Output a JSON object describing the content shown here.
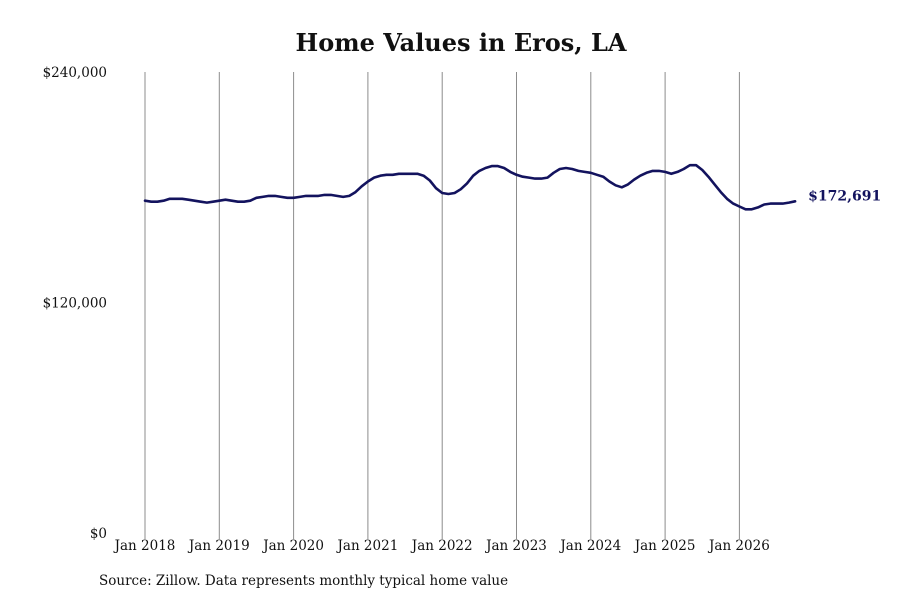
{
  "colors": {
    "line": "#13135e",
    "grid": "#8c8c8c",
    "text": "#111111"
  },
  "chart_data": {
    "type": "line",
    "title": "Home Values in Eros, LA",
    "source": "Source: Zillow. Data represents monthly typical home value",
    "ylim": [
      0,
      240000
    ],
    "ytick_labels": [
      "$0",
      "$120,000",
      "$240,000"
    ],
    "ytick_values": [
      0,
      120000,
      240000
    ],
    "xtick_labels": [
      "Jan 2018",
      "Jan 2019",
      "Jan 2020",
      "Jan 2021",
      "Jan 2022",
      "Jan 2023",
      "Jan 2024",
      "Jan 2025",
      "Jan 2026"
    ],
    "x_start": "Jan 2018",
    "x_end": "Jul 2026",
    "grid": "vertical",
    "last_value_label": "$172,691",
    "series": [
      {
        "values": [
          173000,
          172500,
          172500,
          173000,
          174000,
          174000,
          174000,
          173500,
          173000,
          172500,
          172000,
          172500,
          173000,
          173500,
          173000,
          172500,
          172500,
          173000,
          174500,
          175000,
          175500,
          175500,
          175000,
          174500,
          174500,
          175000,
          175500,
          175500,
          175500,
          176000,
          176000,
          175500,
          175000,
          175500,
          177500,
          180500,
          183000,
          185000,
          186000,
          186500,
          186500,
          187000,
          187000,
          187000,
          187000,
          186000,
          183500,
          179500,
          177000,
          176500,
          177000,
          179000,
          182000,
          186000,
          188500,
          190000,
          191000,
          191000,
          190000,
          188000,
          186500,
          185500,
          185000,
          184500,
          184500,
          185000,
          187500,
          189500,
          190000,
          189500,
          188500,
          188000,
          187500,
          186500,
          185500,
          183000,
          181000,
          180000,
          181500,
          184000,
          186000,
          187500,
          188500,
          188500,
          188000,
          187000,
          188000,
          189500,
          191500,
          191500,
          189000,
          185500,
          181500,
          177500,
          174000,
          171500,
          170000,
          168500,
          168500,
          169500,
          171000,
          171500,
          171500,
          171500,
          172000,
          172691
        ]
      }
    ]
  }
}
